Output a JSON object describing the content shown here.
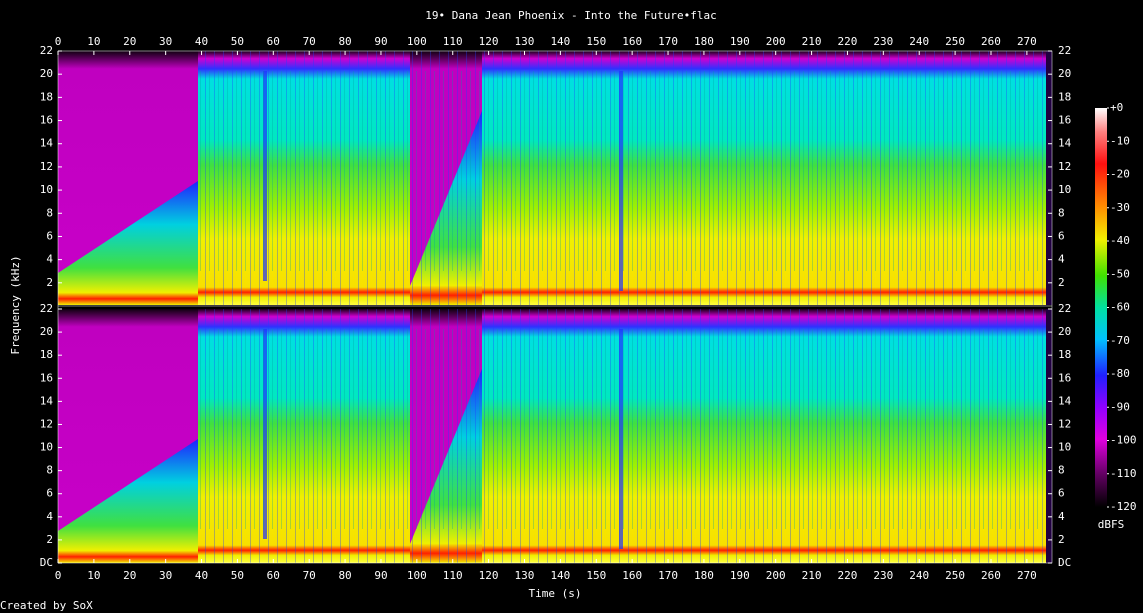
{
  "chart_data": {
    "type": "spectrogram",
    "title": "19• Dana Jean Phoenix - Into the Future•flac",
    "x_label": "Time (s)",
    "y_label": "Frequency (kHz)",
    "xlim": [
      0,
      277
    ],
    "xticks": [
      0,
      10,
      20,
      30,
      40,
      50,
      60,
      70,
      80,
      90,
      100,
      110,
      120,
      130,
      140,
      150,
      160,
      170,
      180,
      190,
      200,
      210,
      220,
      230,
      240,
      250,
      260,
      270
    ],
    "ylim": [
      0,
      22
    ],
    "yticks": [
      {
        "value": 0,
        "label": "DC"
      },
      2,
      4,
      6,
      8,
      10,
      12,
      14,
      16,
      18,
      20,
      22
    ],
    "colorbar": {
      "label": "dBFS",
      "lim": [
        -120,
        0
      ],
      "ticks": [
        {
          "value": 0,
          "label": "+0"
        },
        -10,
        -20,
        -30,
        -40,
        -50,
        -60,
        -70,
        -80,
        -90,
        -100,
        -110,
        -120
      ]
    },
    "footer": "Created by SoX"
  }
}
